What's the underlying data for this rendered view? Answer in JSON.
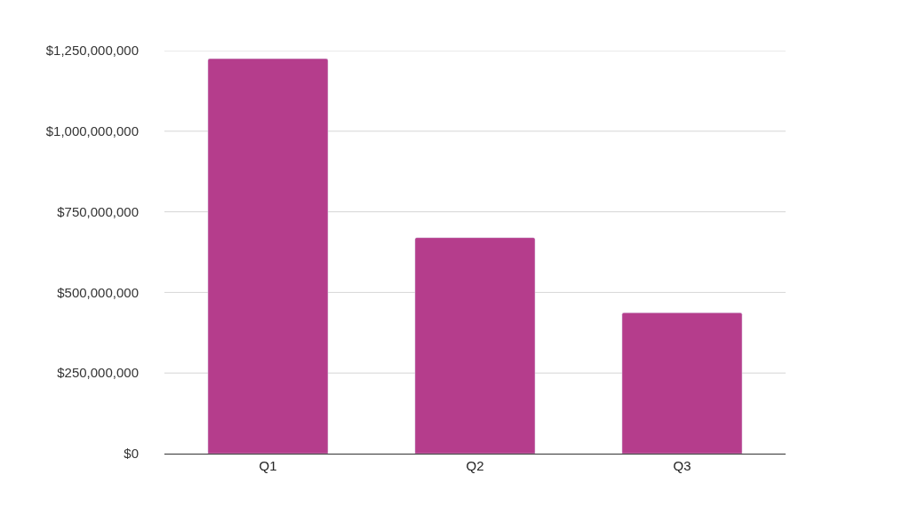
{
  "chart_data": {
    "type": "bar",
    "categories": [
      "Q1",
      "Q2",
      "Q3"
    ],
    "values": [
      1225000000,
      670000000,
      437000000
    ],
    "color": "#b53d8c",
    "ylim": [
      0,
      1250000000
    ],
    "yticks": [
      {
        "value": 0,
        "label": "$0"
      },
      {
        "value": 250000000,
        "label": "$250,000,000"
      },
      {
        "value": 500000000,
        "label": "$500,000,000"
      },
      {
        "value": 750000000,
        "label": "$750,000,000"
      },
      {
        "value": 1000000000,
        "label": "$1,000,000,000"
      },
      {
        "value": 1250000000,
        "label": "$1,250,000,000"
      }
    ],
    "grid": "y"
  }
}
